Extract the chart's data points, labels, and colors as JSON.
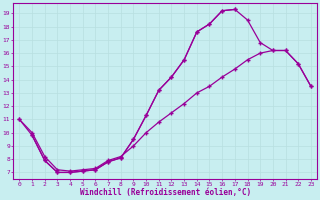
{
  "bg_color": "#c8eef0",
  "line_color": "#990099",
  "grid_color": "#b8dfe0",
  "xlabel": "Windchill (Refroidissement éolien,°C)",
  "ylim": [
    6.5,
    19.8
  ],
  "xlim": [
    -0.5,
    23.5
  ],
  "yticks": [
    7,
    8,
    9,
    10,
    11,
    12,
    13,
    14,
    15,
    16,
    17,
    18,
    19
  ],
  "xticks": [
    0,
    1,
    2,
    3,
    4,
    5,
    6,
    7,
    8,
    9,
    10,
    11,
    12,
    13,
    14,
    15,
    16,
    17,
    18,
    19,
    20,
    21,
    22,
    23
  ],
  "curve1_x": [
    1,
    2,
    3,
    4,
    5,
    6,
    7,
    8,
    9,
    10,
    11,
    12,
    13,
    14,
    15,
    16,
    17
  ],
  "curve1_y": [
    9.8,
    7.9,
    7.0,
    7.0,
    7.1,
    7.2,
    7.8,
    8.1,
    9.5,
    11.3,
    13.2,
    14.2,
    15.5,
    17.6,
    18.2,
    19.2,
    19.3
  ],
  "curve2_x": [
    0,
    1,
    2,
    3,
    4,
    5,
    6,
    7,
    8,
    9,
    10,
    11,
    12,
    13,
    14,
    15,
    16,
    17,
    18,
    19,
    20,
    21,
    22,
    23
  ],
  "curve2_y": [
    11.0,
    9.8,
    7.9,
    7.0,
    7.0,
    7.1,
    7.2,
    7.8,
    8.1,
    9.5,
    11.3,
    13.2,
    14.2,
    15.5,
    17.6,
    18.2,
    19.2,
    19.3,
    18.5,
    16.8,
    16.2,
    16.2,
    15.2,
    13.5
  ],
  "curve3_x": [
    0,
    1,
    2,
    3,
    4,
    5,
    6,
    7,
    8,
    9,
    10,
    11,
    12,
    13,
    14,
    15,
    16,
    17,
    18,
    19,
    20,
    21,
    22,
    23
  ],
  "curve3_y": [
    11.0,
    10.0,
    8.2,
    7.2,
    7.1,
    7.2,
    7.3,
    7.9,
    8.2,
    9.0,
    10.0,
    10.8,
    11.5,
    12.2,
    13.0,
    13.5,
    14.2,
    14.8,
    15.5,
    16.0,
    16.2,
    16.2,
    15.2,
    13.5
  ]
}
